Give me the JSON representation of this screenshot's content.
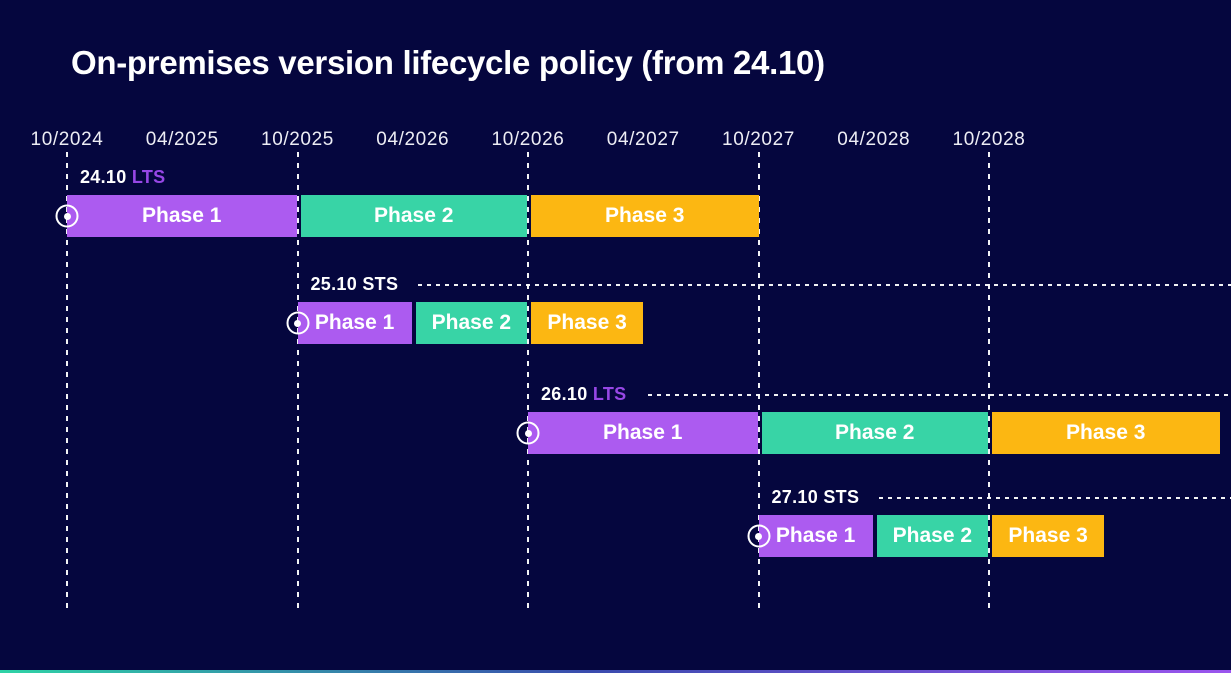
{
  "title": "On-premises version lifecycle policy (from 24.10)",
  "colors": {
    "background": "#05063E",
    "axis_text": "#EDEDF4",
    "grid_line": "#FFFFFF",
    "phase1": "#AC5BF0",
    "phase2": "#38D4A6",
    "phase3": "#FCB712",
    "version_text": "#FFFFFF",
    "lts_tag": "#9747E6",
    "sts_tag": "#FFFFFF",
    "accent_gradient_left": "#2FD3A6",
    "accent_gradient_mid": "#3A4BAE",
    "accent_gradient_right": "#9B55EE"
  },
  "chart_data": {
    "type": "gantt",
    "title": "On-premises version lifecycle policy (from 24.10)",
    "x_ticks": [
      "10/2024",
      "04/2025",
      "10/2025",
      "04/2026",
      "10/2026",
      "04/2027",
      "10/2027",
      "04/2028",
      "10/2028"
    ],
    "x_range": [
      "10/2024",
      "10/2029"
    ],
    "gridlines_at": [
      "10/2024",
      "10/2025",
      "10/2026",
      "10/2027",
      "10/2028"
    ],
    "grid": "vertical-dashed",
    "legend_position": "none",
    "phase_legend": [
      "Phase 1",
      "Phase 2",
      "Phase 3"
    ],
    "rows": [
      {
        "version": "24.10",
        "channel": "LTS",
        "start": "10/2024",
        "release_marker": true,
        "leader_line": false,
        "phases": [
          {
            "label": "Phase 1",
            "start": "10/2024",
            "end": "10/2025",
            "color_key": "phase1"
          },
          {
            "label": "Phase 2",
            "start": "10/2025",
            "end": "10/2026",
            "color_key": "phase2"
          },
          {
            "label": "Phase 3",
            "start": "10/2026",
            "end": "10/2027",
            "color_key": "phase3"
          }
        ]
      },
      {
        "version": "25.10",
        "channel": "STS",
        "start": "10/2025",
        "release_marker": true,
        "leader_line": true,
        "phases": [
          {
            "label": "Phase 1",
            "start": "10/2025",
            "end": "04/2026",
            "color_key": "phase1"
          },
          {
            "label": "Phase 2",
            "start": "04/2026",
            "end": "10/2026",
            "color_key": "phase2"
          },
          {
            "label": "Phase 3",
            "start": "10/2026",
            "end": "04/2027",
            "color_key": "phase3"
          }
        ]
      },
      {
        "version": "26.10",
        "channel": "LTS",
        "start": "10/2026",
        "release_marker": true,
        "leader_line": true,
        "phases": [
          {
            "label": "Phase 1",
            "start": "10/2026",
            "end": "10/2027",
            "color_key": "phase1"
          },
          {
            "label": "Phase 2",
            "start": "10/2027",
            "end": "10/2028",
            "color_key": "phase2"
          },
          {
            "label": "Phase 3",
            "start": "10/2028",
            "end": "10/2029",
            "color_key": "phase3"
          }
        ]
      },
      {
        "version": "27.10",
        "channel": "STS",
        "start": "10/2027",
        "release_marker": true,
        "leader_line": true,
        "phases": [
          {
            "label": "Phase 1",
            "start": "10/2027",
            "end": "04/2028",
            "color_key": "phase1"
          },
          {
            "label": "Phase 2",
            "start": "04/2028",
            "end": "10/2028",
            "color_key": "phase2"
          },
          {
            "label": "Phase 3",
            "start": "10/2028",
            "end": "04/2029",
            "color_key": "phase3"
          }
        ]
      }
    ]
  }
}
